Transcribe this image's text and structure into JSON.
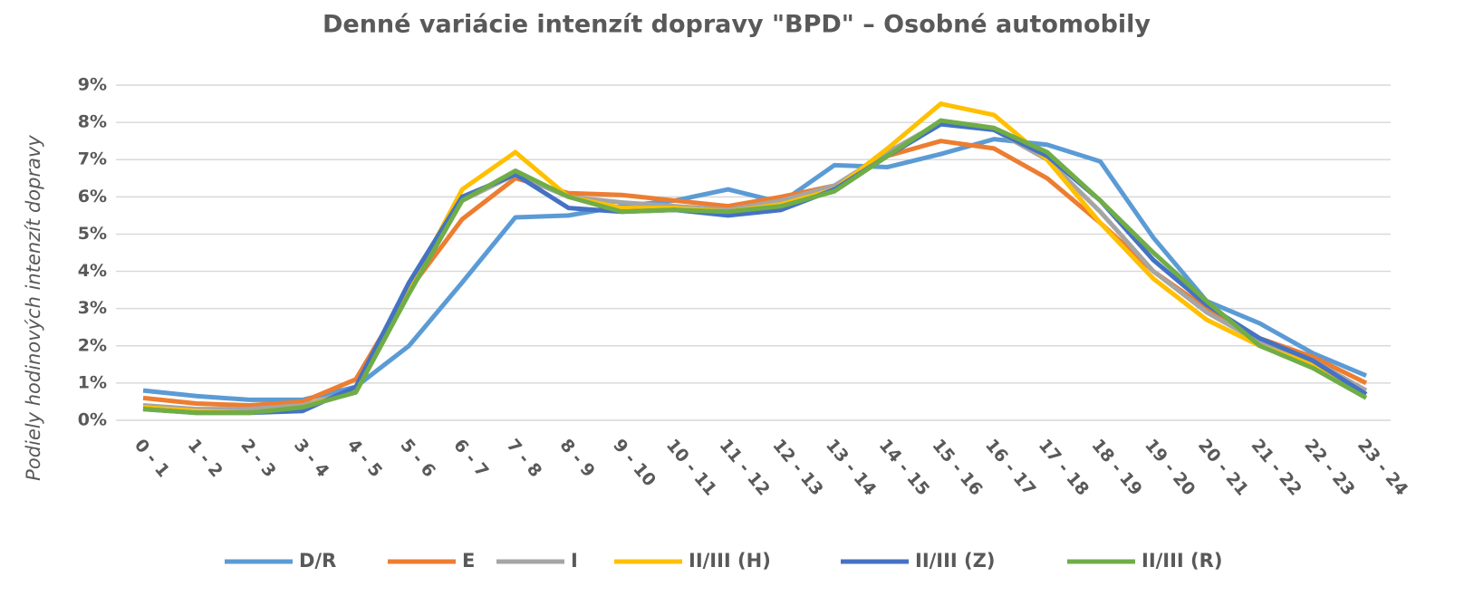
{
  "chart_data": {
    "type": "line",
    "title": "Denné variácie intenzít dopravy \"BPD\" – Osobné automobily",
    "y_label": "Podiely hodinových intenzít dopravy",
    "categories": [
      "0 - 1",
      "1 - 2",
      "2 - 3",
      "3 - 4",
      "4 - 5",
      "5 - 6",
      "6 - 7",
      "7 - 8",
      "8 - 9",
      "9 - 10",
      "10 - 11",
      "11 - 12",
      "12 - 13",
      "13 - 14",
      "14 - 15",
      "15 - 16",
      "16 - 17",
      "17 - 18",
      "18 - 19",
      "19 - 20",
      "20 - 21",
      "21 - 22",
      "22 - 23",
      "23 - 24"
    ],
    "ylim": [
      0,
      9
    ],
    "yticks": [
      {
        "value": 0,
        "label": "0%"
      },
      {
        "value": 1,
        "label": "1%"
      },
      {
        "value": 2,
        "label": "2%"
      },
      {
        "value": 3,
        "label": "3%"
      },
      {
        "value": 4,
        "label": "4%"
      },
      {
        "value": 5,
        "label": "5%"
      },
      {
        "value": 6,
        "label": "6%"
      },
      {
        "value": 7,
        "label": "7%"
      },
      {
        "value": 8,
        "label": "8%"
      },
      {
        "value": 9,
        "label": "9%"
      }
    ],
    "grid": true,
    "legend": "bottom",
    "series": [
      {
        "name": "D/R",
        "color": "#5b9bd5",
        "values": [
          0.8,
          0.65,
          0.55,
          0.55,
          0.9,
          2.0,
          3.7,
          5.45,
          5.5,
          5.75,
          5.9,
          6.2,
          5.85,
          6.85,
          6.8,
          7.15,
          7.55,
          7.4,
          6.95,
          4.9,
          3.2,
          2.6,
          1.8,
          1.2
        ]
      },
      {
        "name": "E",
        "color": "#ed7d31",
        "values": [
          0.6,
          0.45,
          0.4,
          0.5,
          1.1,
          3.5,
          5.4,
          6.5,
          6.1,
          6.05,
          5.9,
          5.75,
          6.0,
          6.3,
          7.1,
          7.5,
          7.3,
          6.5,
          5.3,
          4.0,
          3.0,
          2.2,
          1.7,
          1.0
        ]
      },
      {
        "name": "I",
        "color": "#a5a5a5",
        "values": [
          0.4,
          0.3,
          0.3,
          0.4,
          0.8,
          3.6,
          5.9,
          6.6,
          6.0,
          5.85,
          5.75,
          5.65,
          5.9,
          6.3,
          7.2,
          8.0,
          7.8,
          7.0,
          5.6,
          4.0,
          2.9,
          2.1,
          1.6,
          0.8
        ]
      },
      {
        "name": "II/III (H)",
        "color": "#ffc000",
        "values": [
          0.35,
          0.25,
          0.2,
          0.35,
          0.8,
          3.5,
          6.2,
          7.2,
          6.0,
          5.7,
          5.7,
          5.6,
          5.8,
          6.2,
          7.3,
          8.5,
          8.2,
          7.0,
          5.3,
          3.8,
          2.7,
          2.0,
          1.5,
          0.7
        ]
      },
      {
        "name": "II/III (Z)",
        "color": "#4472c4",
        "values": [
          0.3,
          0.2,
          0.2,
          0.25,
          0.9,
          3.7,
          6.0,
          6.6,
          5.7,
          5.6,
          5.65,
          5.5,
          5.65,
          6.2,
          7.1,
          7.95,
          7.8,
          7.1,
          5.9,
          4.3,
          3.1,
          2.2,
          1.6,
          0.7
        ]
      },
      {
        "name": "II/III (R)",
        "color": "#70ad47",
        "values": [
          0.3,
          0.2,
          0.2,
          0.35,
          0.75,
          3.4,
          5.9,
          6.7,
          6.0,
          5.6,
          5.65,
          5.6,
          5.75,
          6.15,
          7.1,
          8.05,
          7.85,
          7.2,
          5.9,
          4.5,
          3.2,
          2.0,
          1.4,
          0.6
        ]
      }
    ]
  }
}
